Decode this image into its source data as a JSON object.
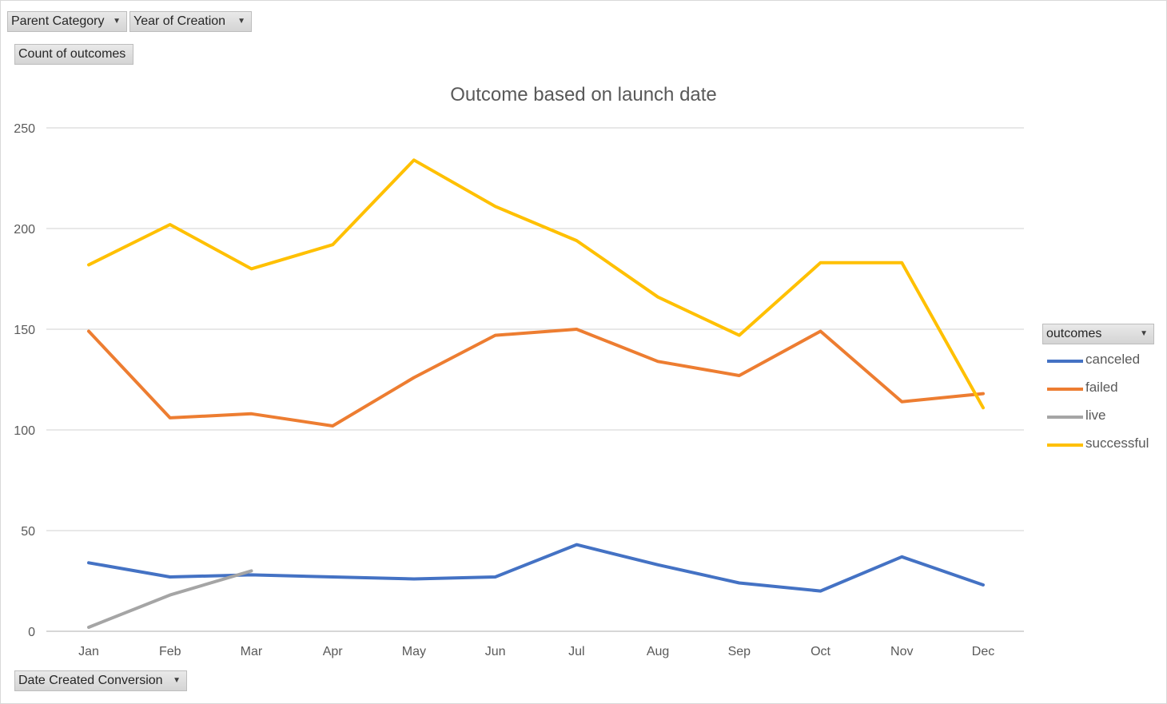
{
  "filters": {
    "parent_category": "Parent Category",
    "year_of_creation": "Year of Creation",
    "values_field": "Count of outcomes",
    "axis_field": "Date Created Conversion",
    "legend_field": "outcomes"
  },
  "icons": {
    "dropdown": "dropdown-arrow-icon"
  },
  "chart_data": {
    "type": "line",
    "title": "Outcome based on launch date",
    "xlabel": "",
    "ylabel": "",
    "categories": [
      "Jan",
      "Feb",
      "Mar",
      "Apr",
      "May",
      "Jun",
      "Jul",
      "Aug",
      "Sep",
      "Oct",
      "Nov",
      "Dec"
    ],
    "ylim": [
      0,
      250
    ],
    "yticks": [
      0,
      50,
      100,
      150,
      200,
      250
    ],
    "grid": true,
    "legend_position": "right",
    "series": [
      {
        "name": "canceled",
        "color": "#4472C4",
        "values": [
          34,
          27,
          28,
          27,
          26,
          27,
          43,
          33,
          24,
          20,
          37,
          23
        ]
      },
      {
        "name": "failed",
        "color": "#ED7D31",
        "values": [
          149,
          106,
          108,
          102,
          126,
          147,
          150,
          134,
          127,
          149,
          114,
          118
        ]
      },
      {
        "name": "live",
        "color": "#A5A5A5",
        "values": [
          2,
          18,
          30,
          null,
          null,
          null,
          null,
          null,
          null,
          null,
          null,
          null
        ]
      },
      {
        "name": "successful",
        "color": "#FFC000",
        "values": [
          182,
          202,
          180,
          192,
          234,
          211,
          194,
          166,
          147,
          183,
          183,
          111
        ]
      }
    ]
  }
}
